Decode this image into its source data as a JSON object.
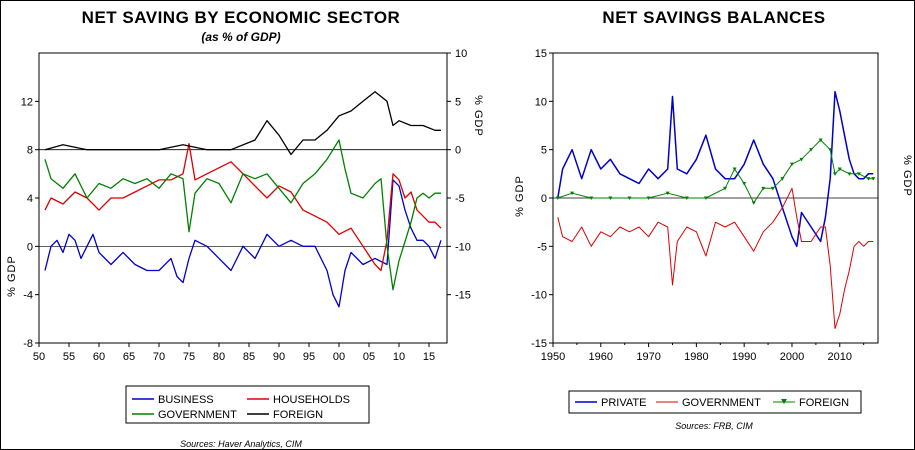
{
  "chart_data": [
    {
      "type": "line",
      "title": "NET SAVING BY ECONOMIC SECTOR",
      "subtitle": "(as % of GDP)",
      "ylabel_left": "% GDP",
      "ylabel_right": "% GDP",
      "x_ticks": [
        "50",
        "55",
        "60",
        "65",
        "70",
        "75",
        "80",
        "85",
        "90",
        "95",
        "00",
        "05",
        "10",
        "15"
      ],
      "y_left_ticks": [
        "-8",
        "-4",
        "0",
        "4",
        "8",
        "12"
      ],
      "y_right_ticks": [
        "10",
        "5",
        "0",
        "-5",
        "-10",
        "-15"
      ],
      "x_range": [
        1950,
        2018
      ],
      "y_left_range": [
        -8,
        16
      ],
      "y_right_range": [
        -20,
        10
      ],
      "legend_position": "bottom",
      "source": "Sources: Haver Analytics, CIM",
      "series": [
        {
          "name": "BUSINESS",
          "axis": "left",
          "color": "#0000cc",
          "x": [
            1951,
            1952,
            1953,
            1954,
            1955,
            1956,
            1957,
            1958,
            1959,
            1960,
            1962,
            1964,
            1966,
            1968,
            1970,
            1972,
            1973,
            1974,
            1975,
            1976,
            1978,
            1980,
            1982,
            1984,
            1986,
            1988,
            1990,
            1992,
            1994,
            1996,
            1998,
            1999,
            2000,
            2001,
            2002,
            2004,
            2006,
            2008,
            2009,
            2010,
            2011,
            2012,
            2013,
            2014,
            2015,
            2016,
            2017
          ],
          "y": [
            -2,
            0,
            0.5,
            -0.5,
            1,
            0.5,
            -1,
            0,
            1,
            -0.5,
            -1.5,
            -0.5,
            -1.5,
            -2,
            -2,
            -1,
            -2.5,
            -3,
            -1,
            0.5,
            0,
            -1,
            -2,
            0,
            -1,
            1,
            0,
            0.5,
            0,
            0,
            -2,
            -4,
            -5,
            -2,
            -0.5,
            -1.5,
            -1,
            -1.5,
            5.5,
            5,
            3,
            1.5,
            0.5,
            0.5,
            0,
            -1,
            0.5
          ]
        },
        {
          "name": "HOUSEHOLDS",
          "axis": "left",
          "color": "#dd0000",
          "x": [
            1951,
            1952,
            1954,
            1956,
            1958,
            1960,
            1962,
            1964,
            1966,
            1968,
            1970,
            1972,
            1974,
            1975,
            1976,
            1978,
            1980,
            1982,
            1984,
            1986,
            1988,
            1990,
            1992,
            1994,
            1996,
            1998,
            2000,
            2002,
            2004,
            2006,
            2007,
            2008,
            2009,
            2010,
            2011,
            2012,
            2013,
            2014,
            2015,
            2016,
            2017
          ],
          "y": [
            3,
            4,
            3.5,
            4.5,
            4,
            3,
            4,
            4,
            4.5,
            5,
            5.5,
            5.5,
            6,
            8.5,
            5.5,
            6,
            6.5,
            7,
            6,
            5,
            4,
            5,
            4.5,
            3,
            2.5,
            2,
            1,
            1.5,
            0,
            -1.5,
            -2,
            0.5,
            6,
            5.5,
            4,
            4.5,
            3,
            2.5,
            2,
            2,
            1.5
          ]
        },
        {
          "name": "GOVERNMENT",
          "axis": "right",
          "color": "#008000",
          "x": [
            1951,
            1952,
            1954,
            1956,
            1958,
            1960,
            1962,
            1964,
            1966,
            1968,
            1970,
            1972,
            1974,
            1975,
            1976,
            1978,
            1980,
            1982,
            1984,
            1986,
            1988,
            1990,
            1992,
            1994,
            1996,
            1998,
            2000,
            2001,
            2002,
            2004,
            2006,
            2007,
            2008,
            2009,
            2010,
            2011,
            2012,
            2013,
            2014,
            2015,
            2016,
            2017
          ],
          "y": [
            -1,
            -3,
            -4,
            -2.5,
            -5,
            -3.5,
            -4,
            -3,
            -3.5,
            -3,
            -4,
            -2.5,
            -3,
            -8.5,
            -4.5,
            -3,
            -3.5,
            -5.5,
            -2.5,
            -3,
            -2.5,
            -4,
            -5.5,
            -3.5,
            -2.5,
            -1,
            1,
            -2,
            -4.5,
            -5,
            -3.5,
            -3,
            -10,
            -14.5,
            -11.5,
            -9.5,
            -7.5,
            -5,
            -4.5,
            -5,
            -4.5,
            -4.5
          ]
        },
        {
          "name": "FOREIGN",
          "axis": "right",
          "color": "#000000",
          "x": [
            1951,
            1954,
            1958,
            1962,
            1966,
            1970,
            1974,
            1978,
            1982,
            1986,
            1988,
            1990,
            1992,
            1994,
            1996,
            1998,
            2000,
            2002,
            2004,
            2006,
            2008,
            2009,
            2010,
            2012,
            2014,
            2016,
            2017
          ],
          "y": [
            0,
            0.5,
            0,
            0,
            0,
            0,
            0.5,
            0,
            0,
            1,
            3,
            1.5,
            -0.5,
            1,
            1,
            2,
            3.5,
            4,
            5,
            6,
            5,
            2.5,
            3,
            2.5,
            2.5,
            2,
            2
          ]
        }
      ]
    },
    {
      "type": "line",
      "title": "NET SAVINGS BALANCES",
      "ylabel_left": "% GDP",
      "ylabel_right": "% GDP",
      "x_ticks": [
        "1950",
        "1960",
        "1970",
        "1980",
        "1990",
        "2000",
        "2010"
      ],
      "y_ticks": [
        "15",
        "10",
        "5",
        "0",
        "-5",
        "-10",
        "-15"
      ],
      "x_range": [
        1950,
        2018
      ],
      "y_range": [
        -15,
        15
      ],
      "legend_position": "bottom",
      "source": "Sources: FRB, CIM",
      "series": [
        {
          "name": "PRIVATE",
          "color": "#0000cc",
          "x": [
            1951,
            1952,
            1954,
            1956,
            1958,
            1960,
            1962,
            1964,
            1966,
            1968,
            1970,
            1972,
            1974,
            1975,
            1976,
            1978,
            1980,
            1982,
            1984,
            1986,
            1988,
            1990,
            1992,
            1994,
            1996,
            1998,
            2000,
            2001,
            2002,
            2004,
            2006,
            2007,
            2008,
            2009,
            2010,
            2011,
            2012,
            2013,
            2014,
            2015,
            2016,
            2017
          ],
          "y": [
            0,
            3,
            5,
            2,
            5,
            3,
            4,
            2.5,
            2,
            1.5,
            3,
            2,
            3,
            10.5,
            3,
            2.5,
            4,
            6.5,
            3,
            2,
            2,
            3.5,
            6,
            3.5,
            2,
            -1,
            -4,
            -5,
            -1.5,
            -3,
            -4.5,
            -2,
            2,
            11,
            9,
            6.5,
            4,
            2.5,
            2,
            2,
            2.5,
            2.5
          ]
        },
        {
          "name": "GOVERNMENT",
          "color": "#dd0000",
          "x": [
            1951,
            1952,
            1954,
            1956,
            1958,
            1960,
            1962,
            1964,
            1966,
            1968,
            1970,
            1972,
            1974,
            1975,
            1976,
            1978,
            1980,
            1982,
            1984,
            1986,
            1988,
            1990,
            1992,
            1994,
            1996,
            1998,
            2000,
            2001,
            2002,
            2004,
            2006,
            2007,
            2008,
            2009,
            2010,
            2011,
            2012,
            2013,
            2014,
            2015,
            2016,
            2017
          ],
          "y": [
            -2,
            -4,
            -4.5,
            -3,
            -5,
            -3.5,
            -4,
            -3,
            -3.5,
            -3,
            -4,
            -2.5,
            -3,
            -9,
            -4.5,
            -3,
            -3.5,
            -6,
            -2.5,
            -3,
            -2.5,
            -4,
            -5.5,
            -3.5,
            -2.5,
            -1,
            1,
            -2,
            -4.5,
            -4.5,
            -3,
            -3,
            -7,
            -13.5,
            -12,
            -9.5,
            -7.5,
            -5,
            -4.5,
            -5,
            -4.5,
            -4.5
          ]
        },
        {
          "name": "FOREIGN",
          "color": "#008000",
          "x": [
            1951,
            1954,
            1958,
            1962,
            1966,
            1970,
            1974,
            1978,
            1982,
            1986,
            1988,
            1990,
            1992,
            1994,
            1996,
            1998,
            2000,
            2002,
            2004,
            2006,
            2008,
            2009,
            2010,
            2012,
            2014,
            2016,
            2017
          ],
          "y": [
            0,
            0.5,
            0,
            0,
            0,
            0,
            0.5,
            0,
            0,
            1,
            3,
            1.5,
            -0.5,
            1,
            1,
            2,
            3.5,
            4,
            5,
            6,
            5,
            2.5,
            3,
            2.5,
            2.5,
            2,
            2
          ]
        }
      ]
    }
  ]
}
